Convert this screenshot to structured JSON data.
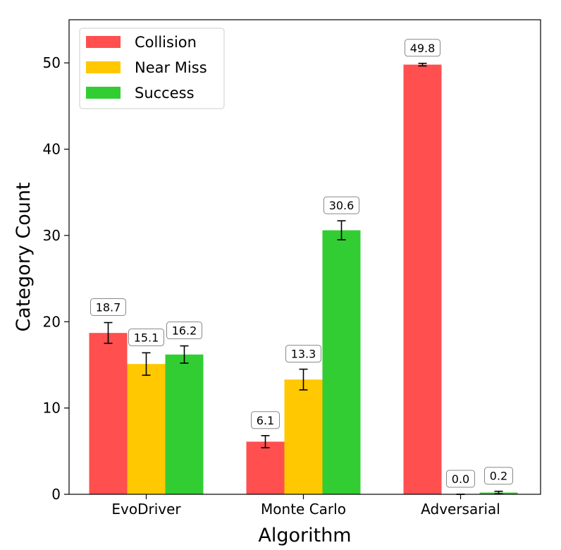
{
  "chart_data": {
    "type": "bar",
    "title": "",
    "xlabel": "Algorithm",
    "ylabel": "Category Count",
    "ylim": [
      0,
      55
    ],
    "yticks": [
      0,
      10,
      20,
      30,
      40,
      50
    ],
    "grid": false,
    "legend_position": "top-left",
    "categories": [
      "EvoDriver",
      "Monte Carlo",
      "Adversarial"
    ],
    "series": [
      {
        "name": "Collision",
        "color": "#ff4f4f",
        "values": [
          18.7,
          6.1,
          49.8
        ],
        "errors": [
          1.2,
          0.7,
          0.15
        ],
        "labels": [
          "18.7",
          "6.1",
          "49.8"
        ]
      },
      {
        "name": "Near Miss",
        "color": "#ffc800",
        "values": [
          15.1,
          13.3,
          0.0
        ],
        "errors": [
          1.3,
          1.2,
          0.0
        ],
        "labels": [
          "15.1",
          "13.3",
          "0.0"
        ]
      },
      {
        "name": "Success",
        "color": "#32cd32",
        "values": [
          16.2,
          30.6,
          0.2
        ],
        "errors": [
          1.0,
          1.1,
          0.15
        ],
        "labels": [
          "16.2",
          "30.6",
          "0.2"
        ]
      }
    ]
  }
}
